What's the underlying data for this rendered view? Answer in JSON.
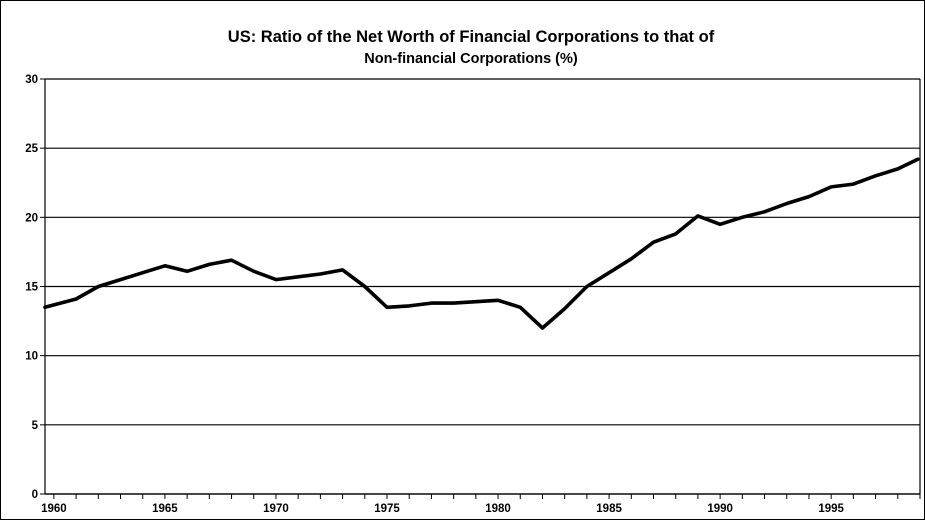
{
  "chart_data": {
    "type": "line",
    "title": "US: Ratio of the Net Worth of Financial Corporations to that of",
    "subtitle": "Non-financial Corporations (%)",
    "xlabel": "",
    "ylabel": "",
    "xlim": [
      1959.6,
      1999.0
    ],
    "ylim": [
      0,
      30
    ],
    "yticks": [
      0,
      5,
      10,
      15,
      20,
      25,
      30
    ],
    "xticks": [
      1960,
      1965,
      1970,
      1975,
      1980,
      1985,
      1990,
      1995
    ],
    "grid": "horizontal",
    "legend": "none",
    "line_color": "#000000",
    "series": [
      {
        "x": [
          1959.6,
          1961,
          1962,
          1963,
          1964,
          1965,
          1966,
          1967,
          1968,
          1969,
          1970,
          1971,
          1972,
          1973,
          1974,
          1975,
          1976,
          1977,
          1978,
          1979,
          1980,
          1981,
          1982,
          1983,
          1984,
          1985,
          1986,
          1987,
          1988,
          1989,
          1990,
          1991,
          1992,
          1993,
          1994,
          1995,
          1996,
          1997,
          1998,
          1998.9
        ],
        "y": [
          13.5,
          14.1,
          15.0,
          15.5,
          16.0,
          16.5,
          16.1,
          16.6,
          16.9,
          16.1,
          15.5,
          15.7,
          15.9,
          16.2,
          15.0,
          13.5,
          13.6,
          13.8,
          13.8,
          13.9,
          14.0,
          13.5,
          12.0,
          13.4,
          15.0,
          16.0,
          17.0,
          18.2,
          18.8,
          20.1,
          19.5,
          20.0,
          20.4,
          21.0,
          21.5,
          22.2,
          22.4,
          23.0,
          23.5,
          24.2
        ]
      }
    ]
  }
}
